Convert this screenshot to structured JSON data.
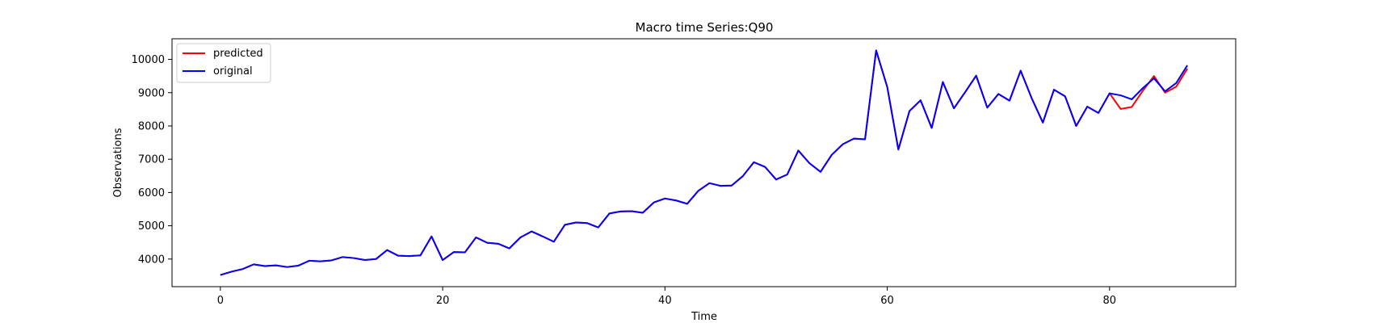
{
  "chart_data": {
    "type": "line",
    "title": "Macro time Series:Q90",
    "xlabel": "Time",
    "ylabel": "Observations",
    "xlim": [
      -4.35,
      91.35
    ],
    "ylim": [
      3170,
      10620
    ],
    "xticks": [
      0,
      20,
      40,
      60,
      80
    ],
    "xtick_labels": [
      "0",
      "20",
      "40",
      "60",
      "80"
    ],
    "yticks": [
      4000,
      5000,
      6000,
      7000,
      8000,
      9000,
      10000
    ],
    "ytick_labels": [
      "4000",
      "5000",
      "6000",
      "7000",
      "8000",
      "9000",
      "10000"
    ],
    "grid": false,
    "legend": "top-left",
    "colors": {
      "predicted": "#ff0000",
      "original": "#0000ff"
    },
    "series": [
      {
        "name": "predicted",
        "x_start": 0,
        "values": [
          3520,
          3620,
          3700,
          3840,
          3790,
          3810,
          3760,
          3800,
          3950,
          3930,
          3960,
          4060,
          4030,
          3970,
          4000,
          4270,
          4100,
          4090,
          4110,
          4680,
          3970,
          4210,
          4200,
          4650,
          4490,
          4460,
          4320,
          4650,
          4830,
          4680,
          4520,
          5030,
          5100,
          5080,
          4950,
          5370,
          5430,
          5440,
          5390,
          5700,
          5820,
          5760,
          5660,
          6050,
          6280,
          6200,
          6210,
          6490,
          6910,
          6770,
          6390,
          6540,
          7260,
          6880,
          6620,
          7130,
          7450,
          7620,
          7600,
          10270,
          9170,
          7290,
          8450,
          8770,
          7940,
          9320,
          8530,
          9010,
          9510,
          8550,
          8960,
          8760,
          9660,
          8830,
          8100,
          9090,
          8890,
          8000,
          8580,
          8390,
          8980,
          8510,
          8570,
          9060,
          9500,
          9000,
          9180,
          9720
        ]
      },
      {
        "name": "original",
        "x_start": 0,
        "values": [
          3520,
          3620,
          3700,
          3840,
          3790,
          3810,
          3760,
          3800,
          3950,
          3930,
          3960,
          4060,
          4030,
          3970,
          4000,
          4270,
          4100,
          4090,
          4110,
          4680,
          3970,
          4210,
          4200,
          4650,
          4490,
          4460,
          4320,
          4650,
          4830,
          4680,
          4520,
          5030,
          5100,
          5080,
          4950,
          5370,
          5430,
          5440,
          5390,
          5700,
          5820,
          5760,
          5660,
          6050,
          6280,
          6200,
          6210,
          6490,
          6910,
          6770,
          6390,
          6540,
          7260,
          6880,
          6620,
          7130,
          7450,
          7620,
          7600,
          10270,
          9170,
          7290,
          8450,
          8770,
          7940,
          9320,
          8530,
          9010,
          9510,
          8550,
          8960,
          8760,
          9660,
          8830,
          8100,
          9090,
          8890,
          8000,
          8580,
          8390,
          8980,
          8920,
          8800,
          9140,
          9430,
          9040,
          9290,
          9820
        ]
      }
    ]
  }
}
